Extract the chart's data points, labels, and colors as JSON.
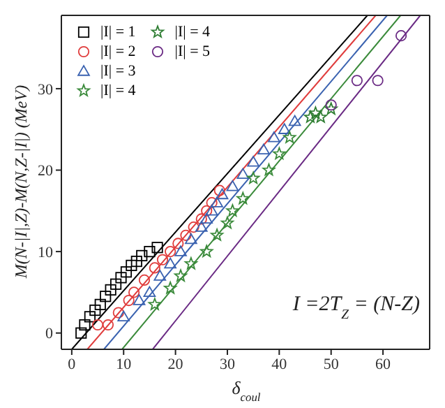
{
  "chart_data": {
    "type": "scatter",
    "xlabel": "δ$_{coul}$",
    "ylabel": "M(N-|I|,Z)-M(N,Z-|I|) (MeV)",
    "annotations": [
      "I =2T$_{Z}$ = (N-Z)"
    ],
    "xlim": [
      -2,
      69
    ],
    "xticks": [
      0,
      10,
      20,
      30,
      40,
      50,
      60
    ],
    "ylim": [
      -2,
      39
    ],
    "yticks": [
      0,
      10,
      20,
      30
    ],
    "legend": "top left",
    "series": [
      {
        "name": "|I| = 1",
        "color": "#000000",
        "marker": "square",
        "x": [
          1.8,
          2.5,
          3.5,
          4.5,
          5.5,
          6.5,
          7.5,
          8.5,
          9.5,
          10.5,
          11.5,
          12.5,
          13.5,
          15,
          16.5
        ],
        "values": [
          0,
          1,
          2,
          2.8,
          3.5,
          4.5,
          5.3,
          6,
          6.8,
          7.5,
          8.3,
          8.8,
          9.5,
          10,
          10.5
        ]
      },
      {
        "name": "|I| = 2",
        "color": "#e03c3c",
        "marker": "circle",
        "x": [
          5,
          7,
          9,
          11,
          12,
          14,
          16,
          17.5,
          19,
          20.5,
          22,
          23.5,
          25,
          26,
          27,
          28.5
        ],
        "values": [
          1,
          1,
          2.5,
          4,
          5,
          6.5,
          8,
          9,
          10,
          11,
          12,
          13,
          14,
          15,
          16,
          17.5
        ]
      },
      {
        "name": "|I| = 3",
        "color": "#3a62b0",
        "marker": "triangle",
        "x": [
          10,
          13,
          15,
          17,
          19,
          21,
          23,
          25,
          26,
          27,
          28,
          29,
          31,
          33,
          35,
          37,
          39,
          41,
          43
        ],
        "values": [
          2,
          4,
          5,
          7,
          8.5,
          10,
          11.5,
          13,
          14,
          15,
          16,
          17,
          18,
          19.5,
          21,
          22.5,
          24,
          25,
          26
        ]
      },
      {
        "name": "|I| = 4",
        "color": "#3a8a3a",
        "marker": "star",
        "x": [
          16,
          19,
          21,
          23,
          26,
          28,
          30,
          31,
          33,
          35,
          38,
          40,
          42
        ],
        "values": [
          3.5,
          5.5,
          7,
          8.5,
          10,
          12,
          13.5,
          15,
          16.5,
          19,
          20,
          22,
          24
        ]
      },
      {
        "name": "|I| = 4",
        "color": "#2e7d32",
        "marker": "star",
        "x": [
          46,
          47,
          48,
          50
        ],
        "values": [
          26.5,
          27,
          26.5,
          27.5
        ]
      },
      {
        "name": "|I| = 5",
        "color": "#6a2a84",
        "marker": "circle",
        "x": [
          50,
          55,
          59,
          63.5
        ],
        "values": [
          28,
          31,
          31,
          36.5
        ]
      },
      {
        "type": "line",
        "color": "#000000",
        "x": [
          0,
          57
        ],
        "values": [
          -2,
          39
        ]
      },
      {
        "type": "line",
        "color": "#e03c3c",
        "x": [
          3,
          58.6
        ],
        "values": [
          -2,
          39
        ]
      },
      {
        "type": "line",
        "color": "#3a62b0",
        "x": [
          6.2,
          60.8
        ],
        "values": [
          -2,
          39
        ]
      },
      {
        "type": "line",
        "color": "#3a8a3a",
        "x": [
          9.7,
          63.4
        ],
        "values": [
          -2,
          39
        ]
      },
      {
        "type": "line",
        "color": "#6a2a84",
        "x": [
          15.6,
          67.2
        ],
        "values": [
          -2,
          39
        ]
      }
    ]
  }
}
